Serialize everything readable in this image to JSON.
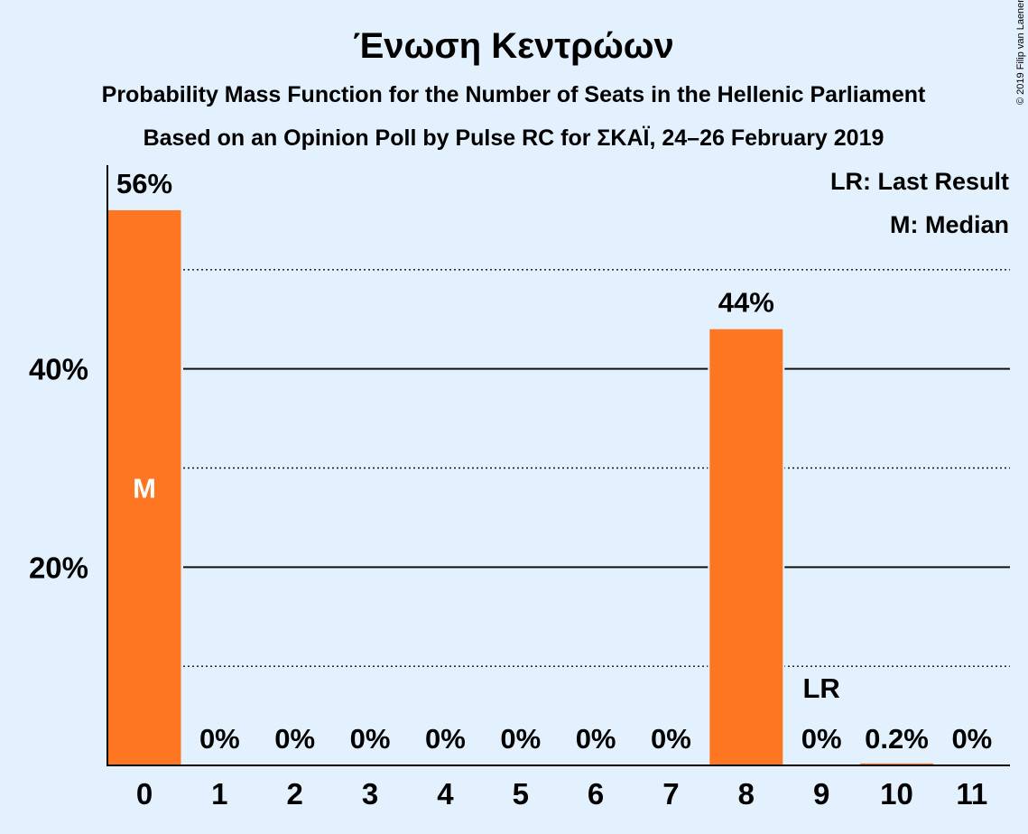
{
  "copyright": "© 2019 Filip van Laenen",
  "chart_data": {
    "type": "bar",
    "title": "Ένωση Κεντρώων",
    "subtitle": "Probability Mass Function for the Number of Seats in the Hellenic Parliament",
    "subtitle2": "Based on an Opinion Poll by Pulse RC for ΣΚΑΪ, 24–26 February 2019",
    "categories": [
      "0",
      "1",
      "2",
      "3",
      "4",
      "5",
      "6",
      "7",
      "8",
      "9",
      "10",
      "11"
    ],
    "values": [
      56,
      0,
      0,
      0,
      0,
      0,
      0,
      0,
      44,
      0,
      0.2,
      0
    ],
    "value_labels": [
      "56%",
      "0%",
      "0%",
      "0%",
      "0%",
      "0%",
      "0%",
      "0%",
      "44%",
      "0%",
      "0.2%",
      "0%"
    ],
    "ylim": [
      0,
      60
    ],
    "yticks": [
      {
        "value": 20,
        "label": "20%"
      },
      {
        "value": 40,
        "label": "40%"
      }
    ],
    "minor_gridlines": [
      10,
      30,
      50
    ],
    "median_category": "0",
    "median_marker": "M",
    "last_result_category": "9",
    "last_result_marker": "LR",
    "legend": [
      "LR: Last Result",
      "M: Median"
    ],
    "legend_position": "top-right",
    "bar_color": "#ff7622",
    "background_color": "#e3f0fd"
  }
}
